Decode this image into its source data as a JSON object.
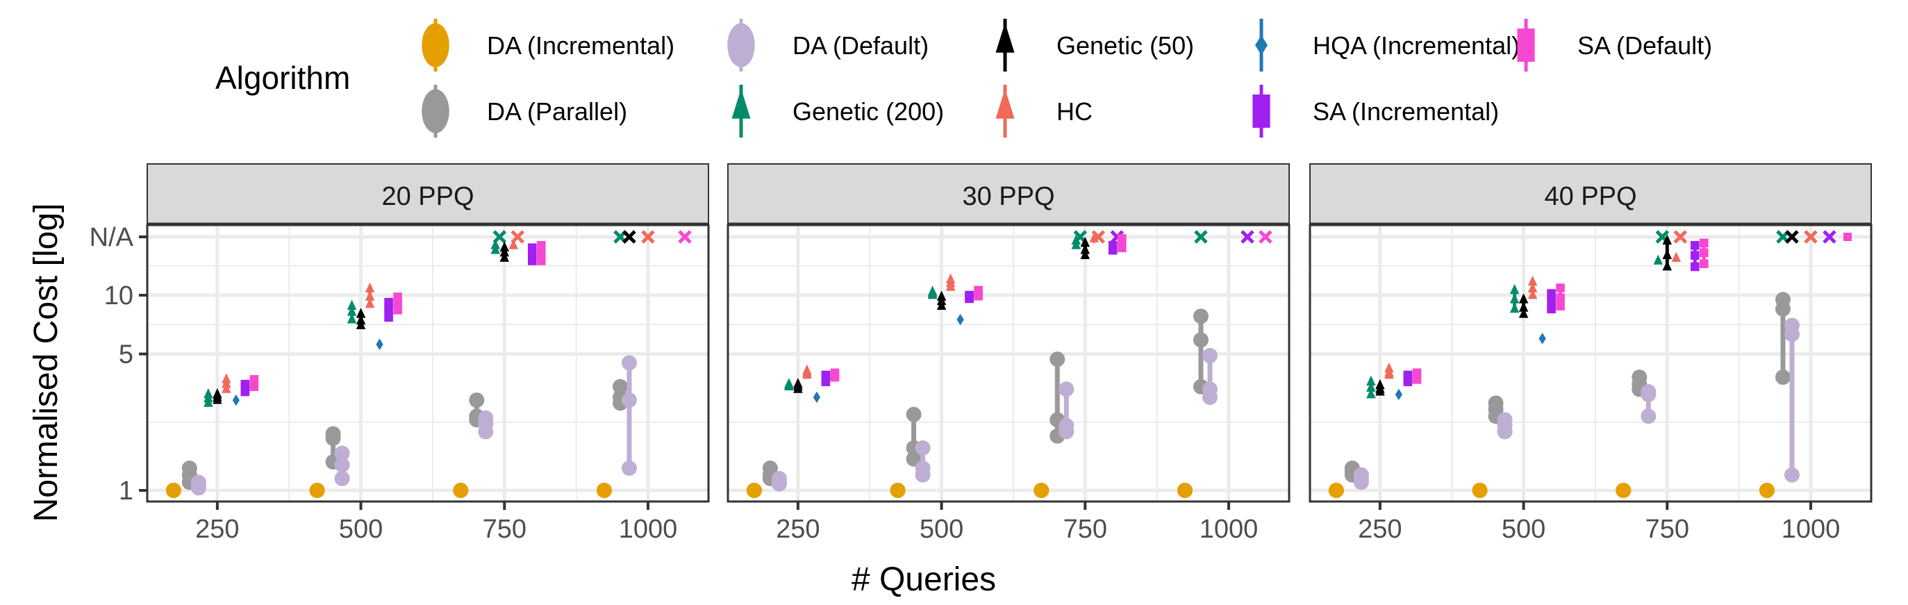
{
  "chart_data": {
    "type": "scatter",
    "title": "",
    "xlabel": "# Queries",
    "ylabel": "Normalised Cost [log]",
    "y_scale": "log",
    "ylim": [
      0.95,
      22
    ],
    "y_ticks": [
      {
        "value": 1,
        "label": "1"
      },
      {
        "value": 5,
        "label": "5"
      },
      {
        "value": 10,
        "label": "10"
      },
      {
        "value": "NA",
        "label": "N/A"
      }
    ],
    "x_ticks": [
      250,
      500,
      750,
      1000
    ],
    "xlim": [
      130,
      1115
    ],
    "grid": true,
    "legend": {
      "title": "Algorithm",
      "position": "top",
      "entries": [
        {
          "name": "DA (Incremental)",
          "color": "#E69F00",
          "shape": "circle"
        },
        {
          "name": "DA (Default)",
          "color": "#BEAED4",
          "shape": "circle"
        },
        {
          "name": "Genetic (50)",
          "color": "#000000",
          "shape": "triangle"
        },
        {
          "name": "HQA (Incremental)",
          "color": "#1F78B4",
          "shape": "diamond"
        },
        {
          "name": "SA (Default)",
          "color": "#F748D2",
          "shape": "square"
        },
        {
          "name": "DA (Parallel)",
          "color": "#999999",
          "shape": "circle"
        },
        {
          "name": "Genetic (200)",
          "color": "#008B6B",
          "shape": "triangle"
        },
        {
          "name": "HC",
          "color": "#F0695A",
          "shape": "triangle"
        },
        {
          "name": "SA (Incremental)",
          "color": "#A020F0",
          "shape": "square"
        }
      ]
    },
    "na_marker": "cross",
    "panels": [
      {
        "strip": "20  PPQ",
        "series": {
          "DA (Incremental)": {
            "250": [
              1,
              1,
              1
            ],
            "500": [
              1,
              1,
              1
            ],
            "750": [
              1,
              1,
              1
            ],
            "1000": [
              1,
              1,
              1
            ]
          },
          "DA (Parallel)": {
            "250": [
              1.1,
              1.2,
              1.3
            ],
            "500": [
              1.4,
              1.85,
              1.95
            ],
            "750": [
              2.3,
              2.4,
              2.9
            ],
            "1000": [
              2.8,
              3.0,
              3.4
            ]
          },
          "DA (Default)": {
            "250": [
              1.03,
              1.07,
              1.1
            ],
            "500": [
              1.15,
              1.35,
              1.55
            ],
            "750": [
              2.0,
              2.2,
              2.35
            ],
            "1000": [
              1.3,
              2.9,
              4.5
            ]
          },
          "Genetic (200)": {
            "250": [
              2.8,
              2.95,
              3.1
            ],
            "500": [
              7.5,
              8.2,
              8.8
            ],
            "750": [
              17,
              18,
              "NA"
            ],
            "1000": [
              "NA"
            ]
          },
          "Genetic (50)": {
            "250": [
              2.9,
              3.0,
              3.1
            ],
            "500": [
              7.0,
              7.4,
              8.0
            ],
            "750": [
              15.5,
              16.5,
              17.5
            ],
            "1000": [
              "NA"
            ]
          },
          "HC": {
            "250": [
              3.3,
              3.5,
              3.7
            ],
            "500": [
              9.0,
              9.8,
              10.8
            ],
            "750": [
              18,
              "NA"
            ],
            "1000": [
              "NA"
            ]
          },
          "HQA (Incremental)": {
            "250": [
              2.9,
              2.9,
              2.9
            ],
            "500": [
              5.6,
              5.6,
              5.6
            ],
            "750": [],
            "1000": []
          },
          "SA (Incremental)": {
            "250": [
              3.2,
              3.35,
              3.5
            ],
            "500": [
              7.7,
              8.4,
              9.2
            ],
            "750": [
              15,
              16,
              17.5
            ],
            "1000": []
          },
          "SA (Default)": {
            "250": [
              3.4,
              3.55,
              3.7
            ],
            "500": [
              8.4,
              9.0,
              9.8
            ],
            "750": [
              15,
              16.5,
              18
            ],
            "1000": [
              "NA"
            ]
          }
        }
      },
      {
        "strip": "30  PPQ",
        "series": {
          "DA (Incremental)": {
            "250": [
              1,
              1,
              1
            ],
            "500": [
              1,
              1,
              1
            ],
            "750": [
              1,
              1,
              1
            ],
            "1000": [
              1,
              1,
              1
            ]
          },
          "DA (Parallel)": {
            "250": [
              1.15,
              1.2,
              1.3
            ],
            "500": [
              1.45,
              1.65,
              2.45
            ],
            "750": [
              1.9,
              2.3,
              4.7
            ],
            "1000": [
              3.4,
              5.9,
              7.8
            ]
          },
          "DA (Default)": {
            "250": [
              1.08,
              1.1,
              1.15
            ],
            "500": [
              1.2,
              1.3,
              1.65
            ],
            "750": [
              2.0,
              2.15,
              3.3
            ],
            "1000": [
              3.0,
              3.3,
              4.9
            ]
          },
          "Genetic (200)": {
            "250": [
              3.4,
              3.45,
              3.5
            ],
            "500": [
              10.0,
              10.2,
              10.4
            ],
            "750": [
              18,
              19,
              "NA"
            ],
            "1000": [
              "NA"
            ]
          },
          "Genetic (50)": {
            "250": [
              3.3,
              3.4,
              3.5
            ],
            "500": [
              8.8,
              9.3,
              9.8
            ],
            "750": [
              16,
              17,
              18.5
            ],
            "1000": []
          },
          "HC": {
            "250": [
              3.9,
              4.0,
              4.1
            ],
            "500": [
              11.0,
              11.5,
              12.0
            ],
            "750": [
              19.5,
              "NA"
            ],
            "1000": []
          },
          "HQA (Incremental)": {
            "250": [
              3.0,
              3.0,
              3.0
            ],
            "500": [
              7.5,
              7.5,
              7.5
            ],
            "750": [],
            "1000": []
          },
          "SA (Incremental)": {
            "250": [
              3.6,
              3.75,
              3.9
            ],
            "500": [
              9.6,
              9.8,
              10.0
            ],
            "750": [
              17,
              18,
              "NA"
            ],
            "1000": [
              "NA"
            ]
          },
          "SA (Default)": {
            "250": [
              3.8,
              3.9,
              4.0
            ],
            "500": [
              9.9,
              10.2,
              10.6
            ],
            "750": [
              17.5,
              18.5,
              19.5
            ],
            "1000": [
              "NA"
            ]
          }
        }
      },
      {
        "strip": "40  PPQ",
        "series": {
          "DA (Incremental)": {
            "250": [
              1,
              1,
              1
            ],
            "500": [
              1,
              1,
              1
            ],
            "750": [
              1,
              1,
              1
            ],
            "1000": [
              1,
              1,
              1
            ]
          },
          "DA (Parallel)": {
            "250": [
              1.2,
              1.25,
              1.3
            ],
            "500": [
              2.4,
              2.6,
              2.8
            ],
            "750": [
              3.3,
              3.5,
              3.8
            ],
            "1000": [
              3.8,
              8.5,
              9.5
            ]
          },
          "DA (Default)": {
            "250": [
              1.1,
              1.15,
              1.2
            ],
            "500": [
              2.0,
              2.15,
              2.3
            ],
            "750": [
              2.4,
              3.1,
              3.2
            ],
            "1000": [
              1.2,
              6.3,
              7.0
            ]
          },
          "Genetic (200)": {
            "250": [
              3.1,
              3.35,
              3.6
            ],
            "500": [
              8.5,
              9.5,
              10.6
            ],
            "750": [
              15,
              "NA"
            ],
            "1000": [
              "NA"
            ]
          },
          "Genetic (50)": {
            "250": [
              3.2,
              3.3,
              3.45
            ],
            "500": [
              8.0,
              8.6,
              9.5
            ],
            "750": [
              14,
              16,
              19
            ],
            "1000": [
              "NA"
            ]
          },
          "HC": {
            "250": [
              3.9,
              4.0,
              4.2
            ],
            "500": [
              10.0,
              10.8,
              11.7
            ],
            "750": [
              15.5,
              "NA"
            ],
            "1000": [
              "NA"
            ]
          },
          "HQA (Incremental)": {
            "250": [
              3.1,
              3.1,
              3.1
            ],
            "500": [
              6.0,
              6.0,
              6.0
            ],
            "750": [],
            "1000": []
          },
          "SA (Incremental)": {
            "250": [
              3.6,
              3.75,
              3.9
            ],
            "500": [
              8.5,
              9.3,
              10.2
            ],
            "750": [
              14,
              16,
              18
            ],
            "1000": [
              "NA"
            ]
          },
          "SA (Default)": {
            "250": [
              3.7,
              3.85,
              4.0
            ],
            "500": [
              8.8,
              9.7,
              10.9
            ],
            "750": [
              14.5,
              16.5,
              18.5
            ],
            "1000": [
              "NA-square"
            ]
          }
        }
      }
    ]
  }
}
